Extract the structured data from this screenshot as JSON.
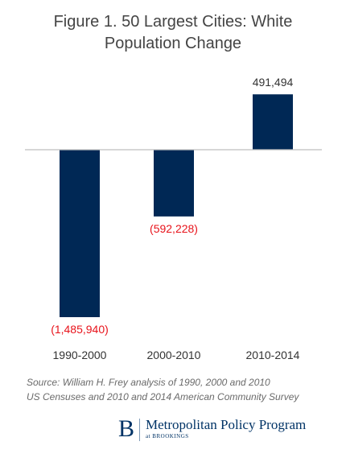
{
  "title_lines": [
    "Figure 1. 50 Largest Cities: White",
    "Population Change"
  ],
  "chart_data": {
    "type": "bar",
    "categories": [
      "1990-2000",
      "2000-2010",
      "2010-2014"
    ],
    "values": [
      -1485940,
      -592228,
      491494
    ],
    "value_labels": [
      "(1,485,940)",
      "(592,228)",
      "491,494"
    ],
    "colors": {
      "bar": "#002855",
      "negative_label": "#e8131b",
      "positive_label": "#333333",
      "axis": "#bfbfbf"
    },
    "title": "Figure 1. 50 Largest Cities: White Population Change",
    "xlabel": "",
    "ylabel": "",
    "gridlines": false,
    "legend": "none"
  },
  "source_lines": [
    "Source: William H. Frey analysis of 1990, 2000 and 2010",
    "US Censuses and 2010 and 2014 American Community Survey"
  ],
  "logo": {
    "mark": "B",
    "name": "Metropolitan Policy Program",
    "sub": "at BROOKINGS"
  }
}
